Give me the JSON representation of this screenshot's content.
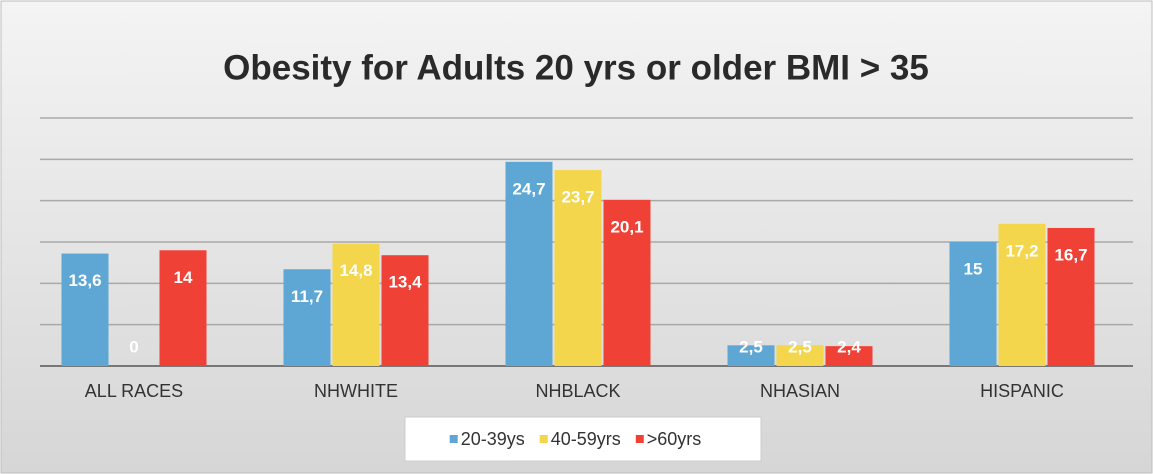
{
  "chart_data": {
    "type": "bar",
    "title": "Obesity for Adults 20 yrs or older BMI > 35",
    "categories": [
      "ALL RACES",
      "NHWHITE",
      "NHBLACK",
      "NHASIAN",
      "HISPANIC"
    ],
    "series": [
      {
        "name": "20-39ys",
        "color": "#5ea6d3",
        "values": [
          13.6,
          11.7,
          24.7,
          2.5,
          15
        ],
        "value_labels": [
          "13,6",
          "11,7",
          "24,7",
          "2,5",
          "15"
        ]
      },
      {
        "name": "40-59yrs",
        "color": "#f3d64c",
        "values": [
          0,
          14.8,
          23.7,
          2.5,
          17.2
        ],
        "value_labels": [
          "0",
          "14,8",
          "23,7",
          "2,5",
          "17,2"
        ]
      },
      {
        "name": ">60yrs",
        "color": "#ef4136",
        "values": [
          14,
          13.4,
          20.1,
          2.4,
          16.7
        ],
        "value_labels": [
          "14",
          "13,4",
          "20,1",
          "2,4",
          "16,7"
        ]
      }
    ],
    "ylim": [
      0,
      30
    ],
    "yticks": [
      0,
      5,
      10,
      15,
      20,
      25,
      30
    ],
    "grid": true,
    "legend": "bottom"
  }
}
